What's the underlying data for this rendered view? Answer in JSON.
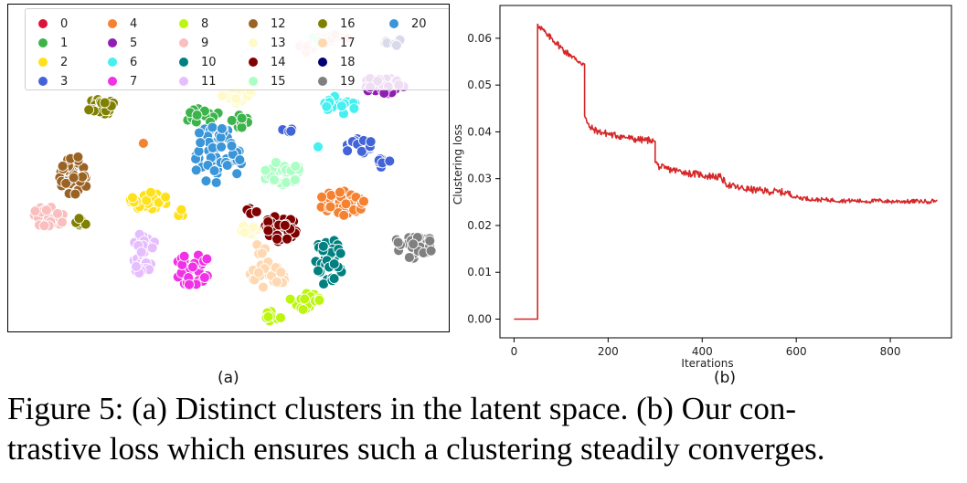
{
  "panel_a": {
    "label": "(a)",
    "legend_entries": [
      {
        "label": "0",
        "color": "#dc143c"
      },
      {
        "label": "1",
        "color": "#3cb44b"
      },
      {
        "label": "2",
        "color": "#ffe119"
      },
      {
        "label": "3",
        "color": "#4363d8"
      },
      {
        "label": "4",
        "color": "#f58231"
      },
      {
        "label": "5",
        "color": "#911eb4"
      },
      {
        "label": "6",
        "color": "#46f0f0"
      },
      {
        "label": "7",
        "color": "#f032e6"
      },
      {
        "label": "8",
        "color": "#bcf60c"
      },
      {
        "label": "9",
        "color": "#fabebe"
      },
      {
        "label": "10",
        "color": "#008080"
      },
      {
        "label": "11",
        "color": "#e6beff"
      },
      {
        "label": "12",
        "color": "#9a6324"
      },
      {
        "label": "13",
        "color": "#fffac8"
      },
      {
        "label": "14",
        "color": "#800000"
      },
      {
        "label": "15",
        "color": "#aaffc3"
      },
      {
        "label": "16",
        "color": "#808000"
      },
      {
        "label": "17",
        "color": "#ffd8b1"
      },
      {
        "label": "18",
        "color": "#000075"
      },
      {
        "label": "19",
        "color": "#808080"
      },
      {
        "label": "20",
        "color": "#3a96d8"
      }
    ]
  },
  "chart_data": {
    "type": "line",
    "title": "",
    "xlabel": "Iterations",
    "ylabel": "Clustering loss",
    "xlim": [
      -30,
      930
    ],
    "ylim": [
      -0.004,
      0.067
    ],
    "xticks": [
      0,
      200,
      400,
      600,
      800
    ],
    "yticks": [
      0.0,
      0.01,
      0.02,
      0.03,
      0.04,
      0.05,
      0.06
    ],
    "ytick_labels": [
      "0.00",
      "0.01",
      "0.02",
      "0.03",
      "0.04",
      "0.05",
      "0.06"
    ],
    "series": [
      {
        "name": "Clustering loss",
        "color": "#d62728",
        "x": [
          0,
          48,
          50,
          55,
          60,
          70,
          80,
          90,
          100,
          110,
          120,
          130,
          140,
          148,
          150,
          155,
          160,
          170,
          180,
          190,
          200,
          210,
          220,
          230,
          240,
          250,
          260,
          270,
          280,
          290,
          298,
          300,
          305,
          310,
          320,
          330,
          340,
          350,
          360,
          370,
          380,
          390,
          400,
          410,
          420,
          430,
          440,
          450,
          460,
          480,
          500,
          520,
          540,
          560,
          580,
          600,
          620,
          640,
          660,
          680,
          700,
          720,
          740,
          760,
          780,
          800,
          820,
          840,
          860,
          880,
          900
        ],
        "values": [
          0.0,
          0.0,
          0.063,
          0.0625,
          0.062,
          0.0605,
          0.06,
          0.059,
          0.058,
          0.057,
          0.0565,
          0.0555,
          0.055,
          0.0545,
          0.0435,
          0.042,
          0.041,
          0.0405,
          0.04,
          0.0398,
          0.0396,
          0.0393,
          0.0392,
          0.039,
          0.0388,
          0.0385,
          0.0384,
          0.0383,
          0.0382,
          0.0383,
          0.038,
          0.0335,
          0.033,
          0.0325,
          0.0322,
          0.032,
          0.0318,
          0.0316,
          0.0315,
          0.0312,
          0.031,
          0.031,
          0.0308,
          0.0305,
          0.0306,
          0.0304,
          0.0303,
          0.029,
          0.0285,
          0.028,
          0.0277,
          0.0275,
          0.0273,
          0.0272,
          0.027,
          0.026,
          0.0258,
          0.0255,
          0.0255,
          0.0254,
          0.0253,
          0.0253,
          0.0252,
          0.0252,
          0.0253,
          0.0251,
          0.0252,
          0.0251,
          0.0252,
          0.0251,
          0.0254
        ]
      }
    ],
    "label": "(b)"
  },
  "caption": {
    "line1": "Figure 5: (a) Distinct clusters in the latent space.  (b) Our con-",
    "line2": "trastive loss which ensures such a clustering steadily converges."
  }
}
